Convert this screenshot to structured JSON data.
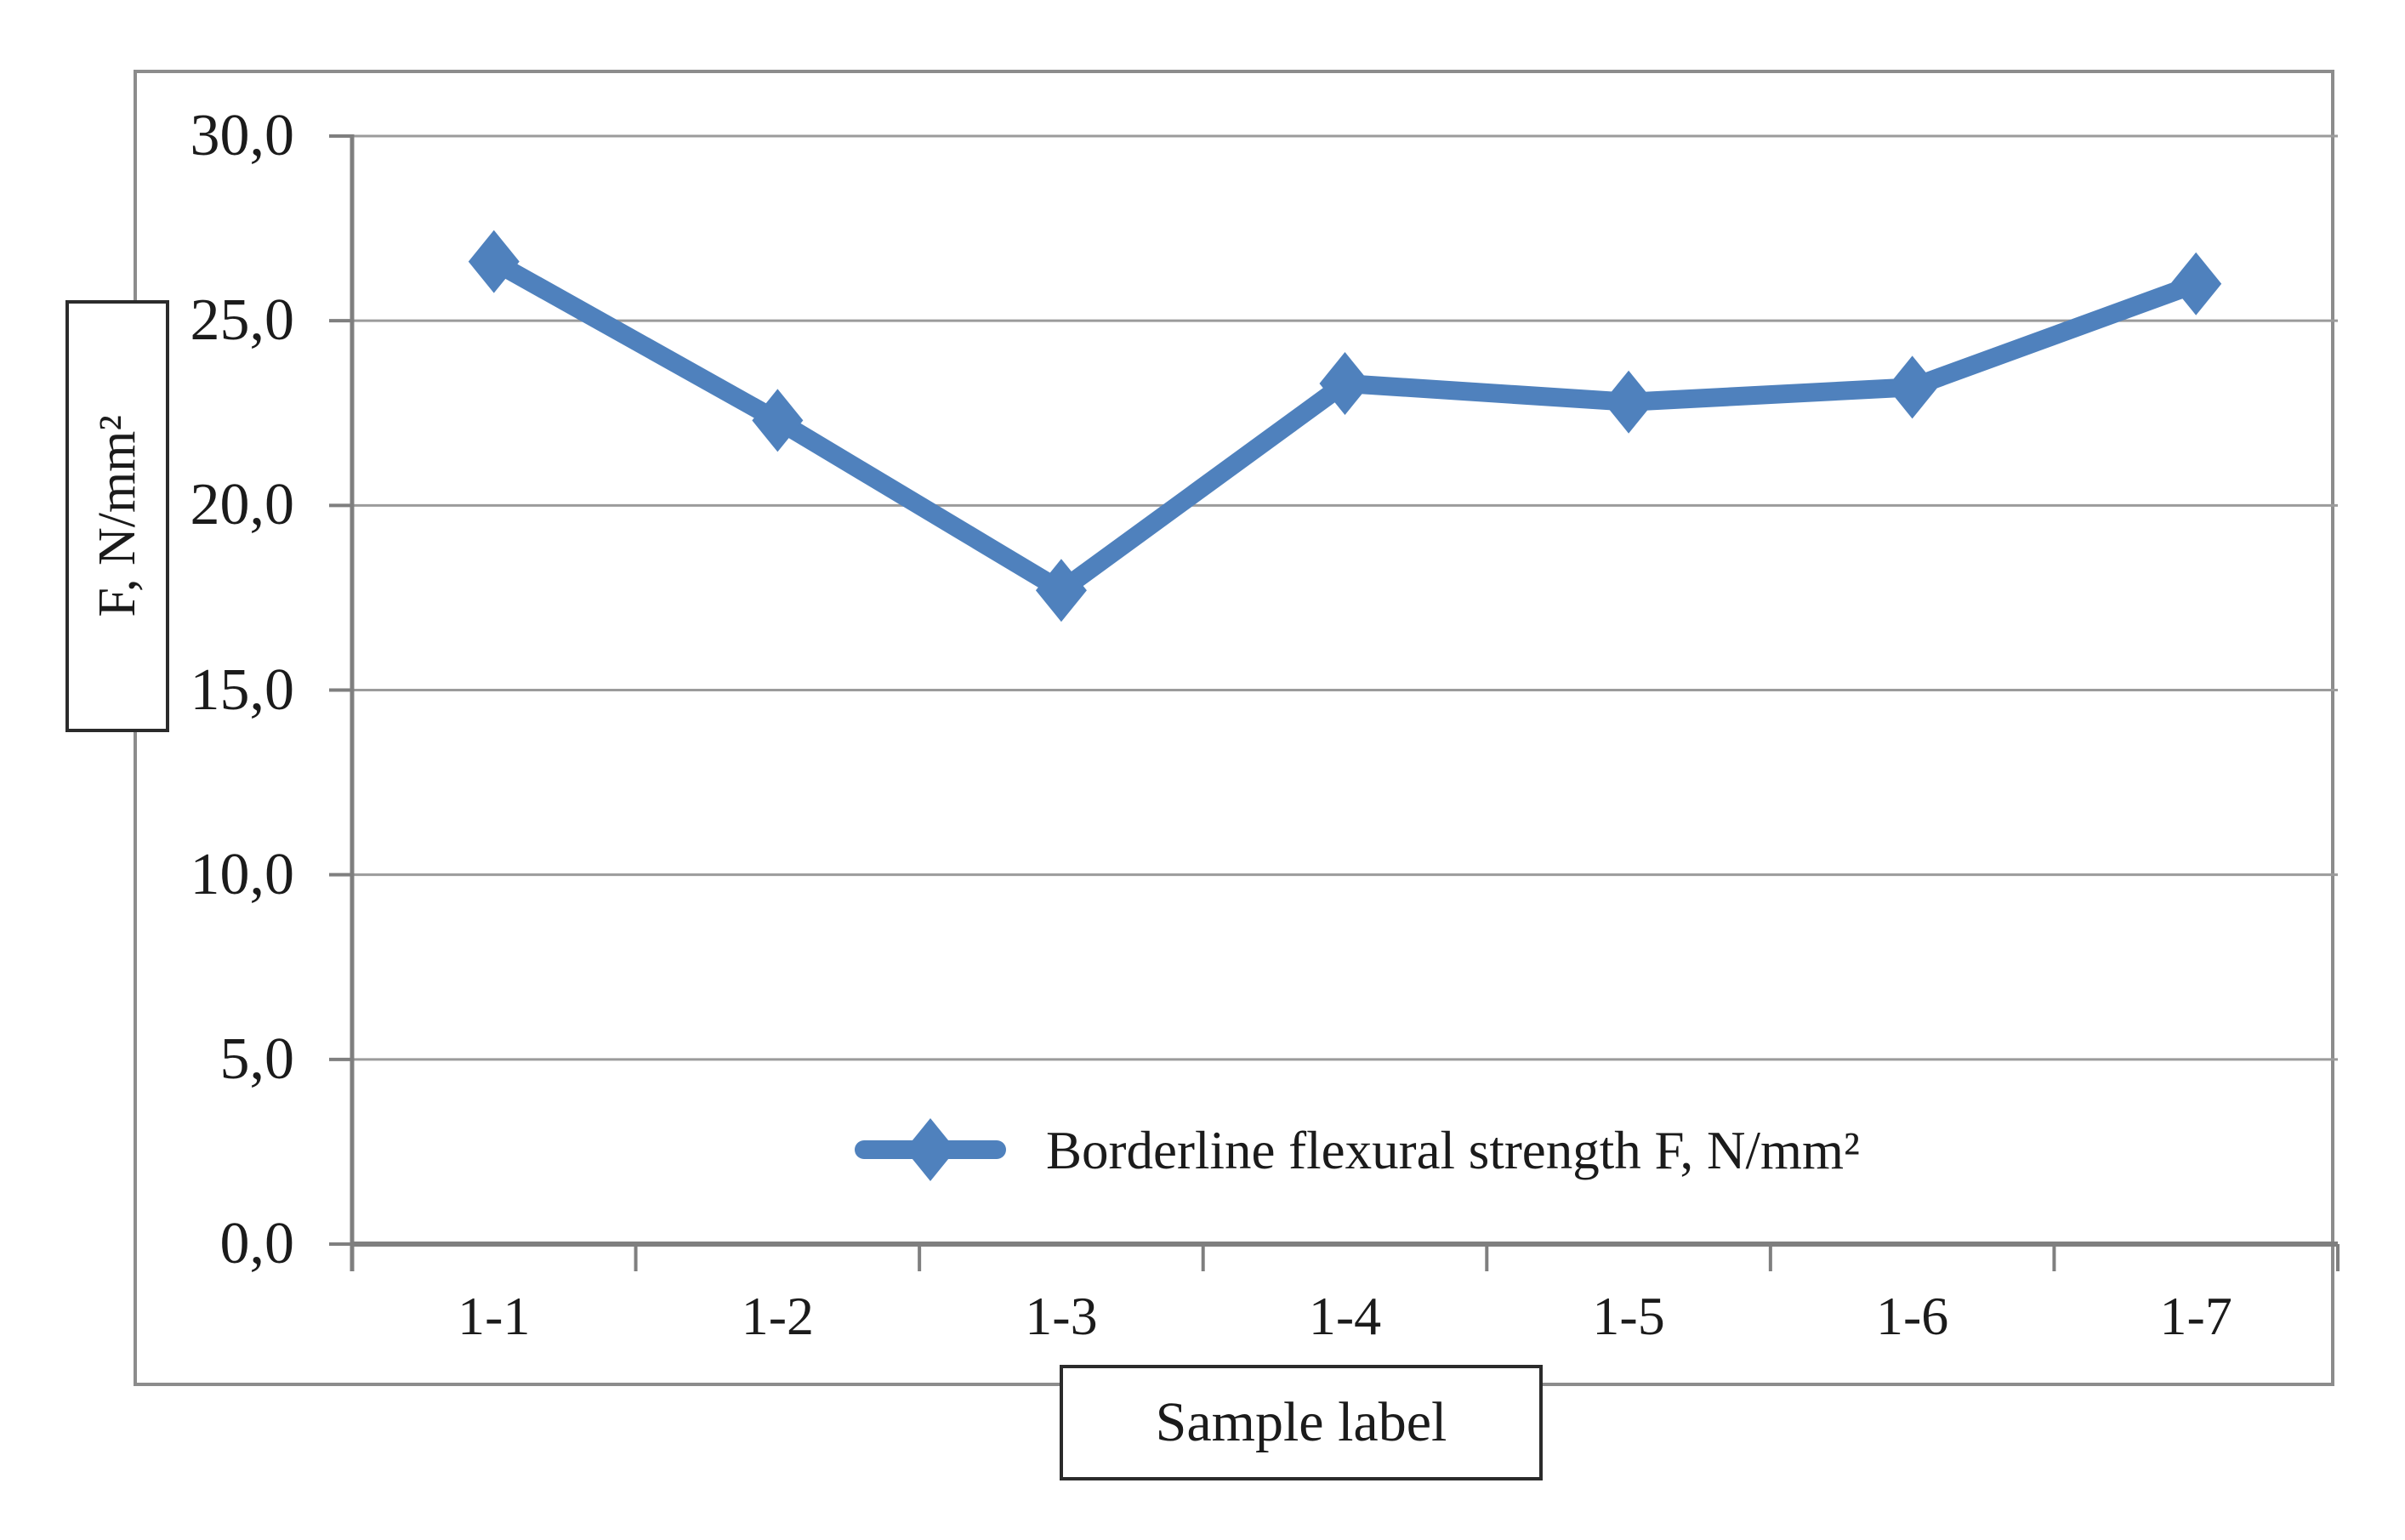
{
  "figure": {
    "y_axis_box_label": "F, N/mm²",
    "x_axis_box_label": "Sample label"
  },
  "legend": {
    "label": "Borderline flexural strength F, N/mm²"
  },
  "chart_data": {
    "type": "line",
    "title": "",
    "xlabel": "Sample label",
    "ylabel": "F, N/mm²",
    "categories": [
      "1-1",
      "1-2",
      "1-3",
      "1-4",
      "1-5",
      "1-6",
      "1-7"
    ],
    "series": [
      {
        "name": "Borderline flexural strength F, N/mm²",
        "values": [
          26.6,
          22.3,
          17.7,
          23.3,
          22.8,
          23.2,
          26.0
        ]
      }
    ],
    "ylim": [
      0,
      30
    ],
    "y_tick_step": 5,
    "y_tick_labels": [
      "0,0",
      "5,0",
      "10,0",
      "15,0",
      "20,0",
      "25,0",
      "30,0"
    ],
    "grid": true,
    "marker": "diamond",
    "legend_position": "inside-bottom-center"
  },
  "colors": {
    "series": "#4f81bd",
    "grid": "#9b9b9b",
    "axis": "#7f7f7f",
    "chart_border": "#8c8c8c",
    "label_box_border": "#2b2b2b",
    "text": "#1b1b1b"
  }
}
